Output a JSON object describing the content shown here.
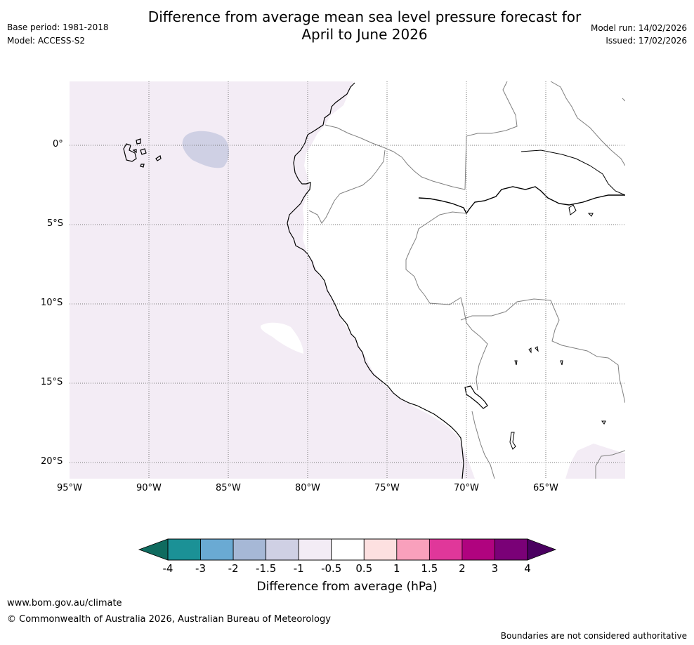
{
  "header": {
    "title_line1": "Difference from average mean sea level pressure forecast for",
    "title_line2": "April to June 2026",
    "base_period": "Base period: 1981-2018",
    "model": "Model: ACCESS-S2",
    "model_run": "Model run: 14/02/2026",
    "issued": "Issued: 17/02/2026"
  },
  "map": {
    "lat_labels": [
      "0°",
      "5°S",
      "10°S",
      "15°S",
      "20°S"
    ],
    "lon_labels": [
      "95°W",
      "90°W",
      "85°W",
      "80°W",
      "75°W",
      "70°W",
      "65°W"
    ],
    "colors": {
      "ocean_anomaly": "#f3ecf5",
      "neg_anomaly": "#cfd0e4",
      "land": "#ffffff",
      "coast": "#000000",
      "border": "#808080",
      "grid": "#777777"
    }
  },
  "colorbar": {
    "ticks": [
      "-4",
      "-3",
      "-2",
      "-1.5",
      "-1",
      "-0.5",
      "0.5",
      "1",
      "1.5",
      "2",
      "3",
      "4"
    ],
    "bins": [
      {
        "range": "-4 to -3",
        "color": "#1b9196"
      },
      {
        "range": "-3 to -2",
        "color": "#6aaad3"
      },
      {
        "range": "-2 to -1.5",
        "color": "#a6b8d6"
      },
      {
        "range": "-1.5 to -1",
        "color": "#cfd0e4"
      },
      {
        "range": "-1 to -0.5",
        "color": "#f3ecf5"
      },
      {
        "range": "-0.5 to 0.5",
        "color": "#ffffff"
      },
      {
        "range": "0.5 to 1",
        "color": "#fde0e0"
      },
      {
        "range": "1 to 1.5",
        "color": "#f9a0bc"
      },
      {
        "range": "1.5 to 2",
        "color": "#e0379a"
      },
      {
        "range": "2 to 3",
        "color": "#b0037f"
      },
      {
        "range": "3 to 4",
        "color": "#7a0177"
      }
    ],
    "low_extend_color": "#0f6b5f",
    "high_extend_color": "#4a0060",
    "label": "Difference from average (hPa)"
  },
  "footer": {
    "url": "www.bom.gov.au/climate",
    "copyright": "© Commonwealth of Australia 2026, Australian Bureau of Meteorology",
    "disclaimer": "Boundaries are not considered authoritative"
  }
}
